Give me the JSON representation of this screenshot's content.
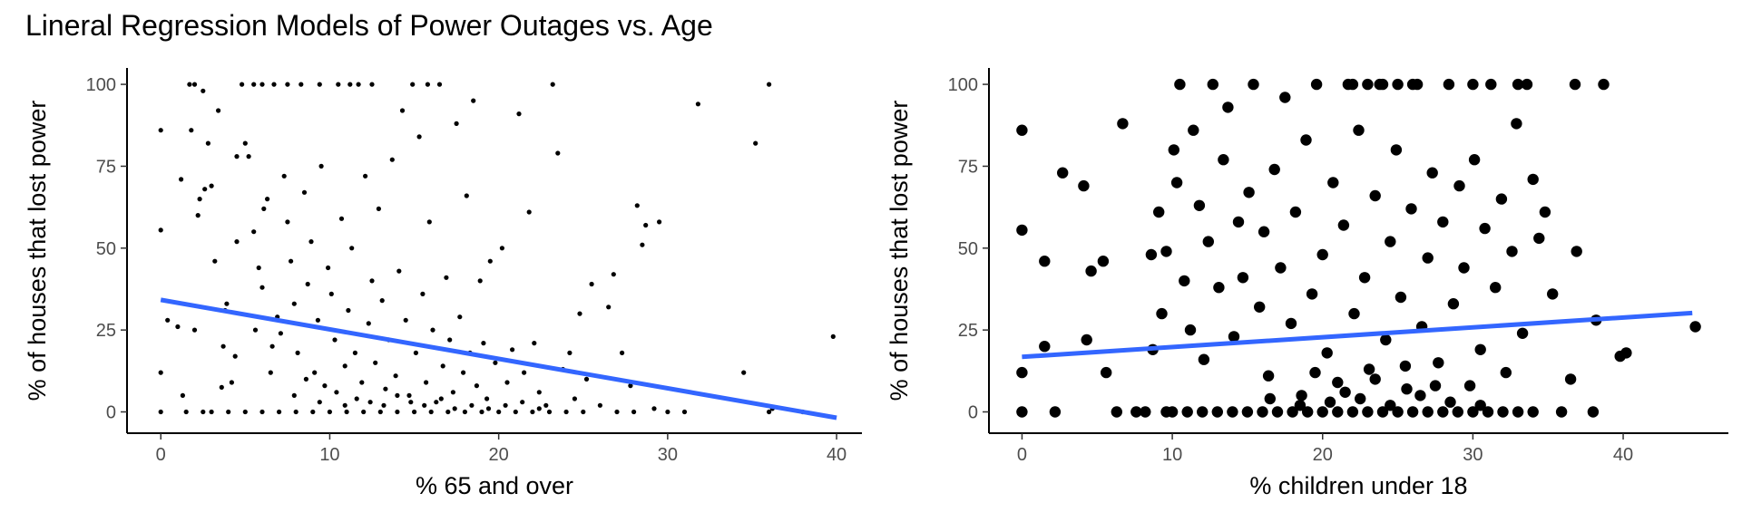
{
  "title": "Lineral Regression Models of Power Outages vs. Age",
  "fit_color": "#3366FF",
  "point_color": "#000000",
  "chart_data": [
    {
      "type": "scatter",
      "xlabel": "% 65 and over",
      "ylabel": "% of houses that lost power",
      "xlim": [
        -2,
        41.5
      ],
      "ylim": [
        -6.5,
        105
      ],
      "xticks": [
        0,
        10,
        20,
        30,
        40
      ],
      "yticks": [
        0,
        25,
        50,
        75,
        100
      ],
      "grid": false,
      "point_size": "small",
      "fit_line": {
        "x": [
          0,
          40
        ],
        "y": [
          34.2,
          -1.8
        ]
      },
      "points": [
        [
          0,
          86
        ],
        [
          0,
          55.5
        ],
        [
          0,
          12
        ],
        [
          0,
          0
        ],
        [
          0.4,
          28
        ],
        [
          1,
          26
        ],
        [
          1.2,
          71
        ],
        [
          1.3,
          5
        ],
        [
          1.7,
          100
        ],
        [
          1.8,
          86
        ],
        [
          2,
          100
        ],
        [
          2.2,
          60
        ],
        [
          2.3,
          65
        ],
        [
          2.5,
          98
        ],
        [
          2.6,
          68
        ],
        [
          2.8,
          82
        ],
        [
          3,
          69
        ],
        [
          3.2,
          46
        ],
        [
          3.4,
          92
        ],
        [
          3.6,
          7.5
        ],
        [
          3.7,
          20
        ],
        [
          3.8,
          31
        ],
        [
          3.9,
          33
        ],
        [
          4.2,
          9
        ],
        [
          4.4,
          17
        ],
        [
          4.5,
          52
        ],
        [
          4.8,
          100
        ],
        [
          2,
          25
        ],
        [
          1.5,
          0
        ],
        [
          2.5,
          0
        ],
        [
          5,
          82
        ],
        [
          5.2,
          78
        ],
        [
          5.5,
          55
        ],
        [
          5.8,
          44
        ],
        [
          6,
          38
        ],
        [
          6.1,
          62
        ],
        [
          6.3,
          65
        ],
        [
          6.5,
          12
        ],
        [
          6.7,
          100
        ],
        [
          6.9,
          29
        ],
        [
          7.1,
          24
        ],
        [
          7.3,
          72
        ],
        [
          7.5,
          58
        ],
        [
          7.7,
          46
        ],
        [
          7.9,
          33
        ],
        [
          8.1,
          18
        ],
        [
          8.3,
          100
        ],
        [
          8.5,
          67
        ],
        [
          8.7,
          39
        ],
        [
          8.9,
          52
        ],
        [
          9.1,
          12
        ],
        [
          9.3,
          28
        ],
        [
          9.5,
          75
        ],
        [
          9.7,
          8
        ],
        [
          9.9,
          44
        ],
        [
          10.1,
          36
        ],
        [
          10.3,
          22
        ],
        [
          10.5,
          100
        ],
        [
          10.7,
          59
        ],
        [
          10.9,
          14
        ],
        [
          11.1,
          31
        ],
        [
          11.3,
          50
        ],
        [
          11.5,
          18
        ],
        [
          11.7,
          100
        ],
        [
          11.9,
          9
        ],
        [
          12.1,
          72
        ],
        [
          12.3,
          27
        ],
        [
          12.5,
          40
        ],
        [
          12.7,
          15
        ],
        [
          12.9,
          62
        ],
        [
          13.1,
          34
        ],
        [
          13.3,
          7
        ],
        [
          13.5,
          22
        ],
        [
          13.7,
          77
        ],
        [
          13.9,
          11
        ],
        [
          14.1,
          43
        ],
        [
          14.3,
          92
        ],
        [
          14.5,
          28
        ],
        [
          14.7,
          5
        ],
        [
          14.9,
          100
        ],
        [
          15.1,
          18
        ],
        [
          15.3,
          84
        ],
        [
          15.5,
          36
        ],
        [
          15.7,
          9
        ],
        [
          15.9,
          58
        ],
        [
          16.1,
          25
        ],
        [
          16.3,
          3
        ],
        [
          16.5,
          100
        ],
        [
          16.7,
          14
        ],
        [
          16.9,
          41
        ],
        [
          17.1,
          22
        ],
        [
          17.3,
          6
        ],
        [
          17.5,
          88
        ],
        [
          17.7,
          29
        ],
        [
          17.9,
          12
        ],
        [
          18.1,
          66
        ],
        [
          18.3,
          18
        ],
        [
          18.5,
          95
        ],
        [
          18.7,
          8
        ],
        [
          18.9,
          40
        ],
        [
          19.1,
          21
        ],
        [
          19.3,
          4
        ],
        [
          19.5,
          46
        ],
        [
          19.8,
          15
        ],
        [
          20.2,
          50
        ],
        [
          20.5,
          9
        ],
        [
          20.8,
          19
        ],
        [
          21.2,
          91
        ],
        [
          21.5,
          12
        ],
        [
          21.8,
          61
        ],
        [
          22.1,
          21
        ],
        [
          22.4,
          6
        ],
        [
          22.8,
          2
        ],
        [
          23.2,
          100
        ],
        [
          23.5,
          79
        ],
        [
          23.8,
          13
        ],
        [
          24.2,
          18
        ],
        [
          24.5,
          4
        ],
        [
          24.8,
          30
        ],
        [
          25.2,
          10
        ],
        [
          25.5,
          39
        ],
        [
          26,
          2
        ],
        [
          26.5,
          32
        ],
        [
          26.8,
          42
        ],
        [
          27.3,
          18
        ],
        [
          27.8,
          8
        ],
        [
          28.2,
          63
        ],
        [
          28.5,
          51
        ],
        [
          28.7,
          57
        ],
        [
          29.5,
          58
        ],
        [
          29.2,
          1
        ],
        [
          30,
          0
        ],
        [
          31.8,
          94
        ],
        [
          34.5,
          12
        ],
        [
          35.2,
          82
        ],
        [
          36,
          100
        ],
        [
          36.2,
          1
        ],
        [
          39.8,
          23
        ],
        [
          5.5,
          100
        ],
        [
          6,
          100
        ],
        [
          7.5,
          100
        ],
        [
          9.4,
          100
        ],
        [
          11.2,
          100
        ],
        [
          12.5,
          100
        ],
        [
          15.8,
          100
        ],
        [
          4.5,
          78
        ],
        [
          5.6,
          25
        ],
        [
          6.6,
          20
        ],
        [
          7.9,
          5
        ],
        [
          8.6,
          10
        ],
        [
          9.4,
          3
        ],
        [
          10.4,
          6
        ],
        [
          10.9,
          2
        ],
        [
          11.6,
          4
        ],
        [
          12.4,
          3
        ],
        [
          13.2,
          2
        ],
        [
          14,
          5
        ],
        [
          14.8,
          3
        ],
        [
          15.6,
          2
        ],
        [
          16.6,
          4
        ],
        [
          17.4,
          1
        ],
        [
          18.4,
          2
        ],
        [
          19.4,
          1
        ],
        [
          20.4,
          2
        ],
        [
          21.4,
          3
        ],
        [
          22.4,
          1
        ],
        [
          3,
          0
        ],
        [
          4,
          0
        ],
        [
          5,
          0
        ],
        [
          6,
          0
        ],
        [
          7,
          0
        ],
        [
          8,
          0
        ],
        [
          9,
          0
        ],
        [
          10,
          0
        ],
        [
          11,
          0
        ],
        [
          12,
          0
        ],
        [
          13,
          0
        ],
        [
          14,
          0
        ],
        [
          15,
          0
        ],
        [
          16,
          0
        ],
        [
          17,
          0
        ],
        [
          18,
          0
        ],
        [
          19,
          0
        ],
        [
          20,
          0
        ],
        [
          21,
          0
        ],
        [
          22,
          0
        ],
        [
          23,
          0
        ],
        [
          24,
          0
        ],
        [
          25,
          0
        ],
        [
          27,
          0
        ],
        [
          28,
          0
        ],
        [
          31,
          0
        ],
        [
          36,
          0
        ],
        [
          38,
          0
        ]
      ]
    },
    {
      "type": "scatter",
      "xlabel": "% children under 18",
      "ylabel": "% of houses that lost power",
      "xlim": [
        -2.2,
        47
      ],
      "ylim": [
        -6.5,
        105
      ],
      "xticks": [
        0,
        10,
        20,
        30,
        40
      ],
      "yticks": [
        0,
        25,
        50,
        75,
        100
      ],
      "grid": false,
      "point_size": "large",
      "fit_line": {
        "x": [
          0,
          44.6
        ],
        "y": [
          16.8,
          30.2
        ]
      },
      "points": [
        [
          0,
          86
        ],
        [
          0,
          55.5
        ],
        [
          0,
          12
        ],
        [
          0,
          0
        ],
        [
          1.5,
          46
        ],
        [
          1.5,
          20
        ],
        [
          2.2,
          0
        ],
        [
          2.7,
          73
        ],
        [
          4.1,
          69
        ],
        [
          4.3,
          22
        ],
        [
          4.6,
          43
        ],
        [
          5.4,
          46
        ],
        [
          5.6,
          12
        ],
        [
          6.3,
          0
        ],
        [
          6.7,
          88
        ],
        [
          7.6,
          0
        ],
        [
          8.6,
          48
        ],
        [
          8.7,
          19
        ],
        [
          9.1,
          61
        ],
        [
          9.3,
          30
        ],
        [
          9.6,
          49
        ],
        [
          10.1,
          80
        ],
        [
          10.3,
          70
        ],
        [
          10.5,
          100
        ],
        [
          10.8,
          40
        ],
        [
          11.2,
          25
        ],
        [
          11.4,
          86
        ],
        [
          11.8,
          63
        ],
        [
          12.1,
          16
        ],
        [
          12.4,
          52
        ],
        [
          12.7,
          100
        ],
        [
          13.1,
          38
        ],
        [
          13.4,
          77
        ],
        [
          13.7,
          93
        ],
        [
          14.1,
          23
        ],
        [
          14.4,
          58
        ],
        [
          14.7,
          41
        ],
        [
          15.1,
          67
        ],
        [
          15.4,
          100
        ],
        [
          15.8,
          32
        ],
        [
          16.1,
          55
        ],
        [
          16.4,
          11
        ],
        [
          16.8,
          74
        ],
        [
          17.2,
          44
        ],
        [
          17.5,
          96
        ],
        [
          17.9,
          27
        ],
        [
          18.2,
          61
        ],
        [
          18.6,
          5
        ],
        [
          18.9,
          83
        ],
        [
          19.3,
          36
        ],
        [
          19.6,
          100
        ],
        [
          20,
          48
        ],
        [
          20.3,
          18
        ],
        [
          20.7,
          70
        ],
        [
          21,
          9
        ],
        [
          21.4,
          57
        ],
        [
          21.7,
          100
        ],
        [
          22.1,
          30
        ],
        [
          22.4,
          86
        ],
        [
          22.8,
          41
        ],
        [
          23.1,
          13
        ],
        [
          23.5,
          66
        ],
        [
          23.8,
          100
        ],
        [
          24.2,
          22
        ],
        [
          24.5,
          52
        ],
        [
          24.9,
          80
        ],
        [
          25.2,
          35
        ],
        [
          25.6,
          7
        ],
        [
          25.9,
          62
        ],
        [
          26.3,
          100
        ],
        [
          26.6,
          26
        ],
        [
          27,
          47
        ],
        [
          27.3,
          73
        ],
        [
          27.7,
          15
        ],
        [
          28,
          58
        ],
        [
          28.4,
          100
        ],
        [
          28.7,
          33
        ],
        [
          29.1,
          69
        ],
        [
          29.4,
          44
        ],
        [
          29.8,
          8
        ],
        [
          30.1,
          77
        ],
        [
          30.5,
          19
        ],
        [
          30.8,
          56
        ],
        [
          31.2,
          100
        ],
        [
          31.5,
          38
        ],
        [
          31.9,
          65
        ],
        [
          32.2,
          12
        ],
        [
          32.6,
          49
        ],
        [
          32.9,
          88
        ],
        [
          33.3,
          24
        ],
        [
          33.6,
          100
        ],
        [
          34,
          71
        ],
        [
          34.4,
          53
        ],
        [
          34.8,
          61
        ],
        [
          35.3,
          36
        ],
        [
          35.9,
          0
        ],
        [
          36.5,
          10
        ],
        [
          36.8,
          100
        ],
        [
          36.9,
          49
        ],
        [
          38,
          0
        ],
        [
          38.2,
          28
        ],
        [
          38.7,
          100
        ],
        [
          39.8,
          17
        ],
        [
          40.2,
          18
        ],
        [
          44.8,
          26
        ],
        [
          15,
          0
        ],
        [
          16,
          0
        ],
        [
          17,
          0
        ],
        [
          18,
          0
        ],
        [
          19,
          0
        ],
        [
          20,
          0
        ],
        [
          21,
          0
        ],
        [
          22,
          0
        ],
        [
          23,
          0
        ],
        [
          24,
          0
        ],
        [
          25,
          0
        ],
        [
          26,
          0
        ],
        [
          27,
          0
        ],
        [
          28,
          0
        ],
        [
          29,
          0
        ],
        [
          30,
          0
        ],
        [
          31,
          0
        ],
        [
          32,
          0
        ],
        [
          33,
          0
        ],
        [
          34,
          0
        ],
        [
          10,
          0
        ],
        [
          11,
          0
        ],
        [
          12,
          0
        ],
        [
          13,
          0
        ],
        [
          14,
          0
        ],
        [
          8.2,
          0
        ],
        [
          9.6,
          0
        ],
        [
          20.5,
          3
        ],
        [
          22.5,
          4
        ],
        [
          24.5,
          2
        ],
        [
          26.5,
          5
        ],
        [
          28.5,
          3
        ],
        [
          18.5,
          2
        ],
        [
          16.5,
          4
        ],
        [
          30.5,
          2
        ],
        [
          21.5,
          6
        ],
        [
          23.5,
          10
        ],
        [
          25.5,
          14
        ],
        [
          27.5,
          8
        ],
        [
          19.5,
          12
        ],
        [
          22,
          100
        ],
        [
          23,
          100
        ],
        [
          24,
          100
        ],
        [
          25,
          100
        ],
        [
          26,
          100
        ],
        [
          30,
          100
        ],
        [
          33,
          100
        ]
      ]
    }
  ]
}
